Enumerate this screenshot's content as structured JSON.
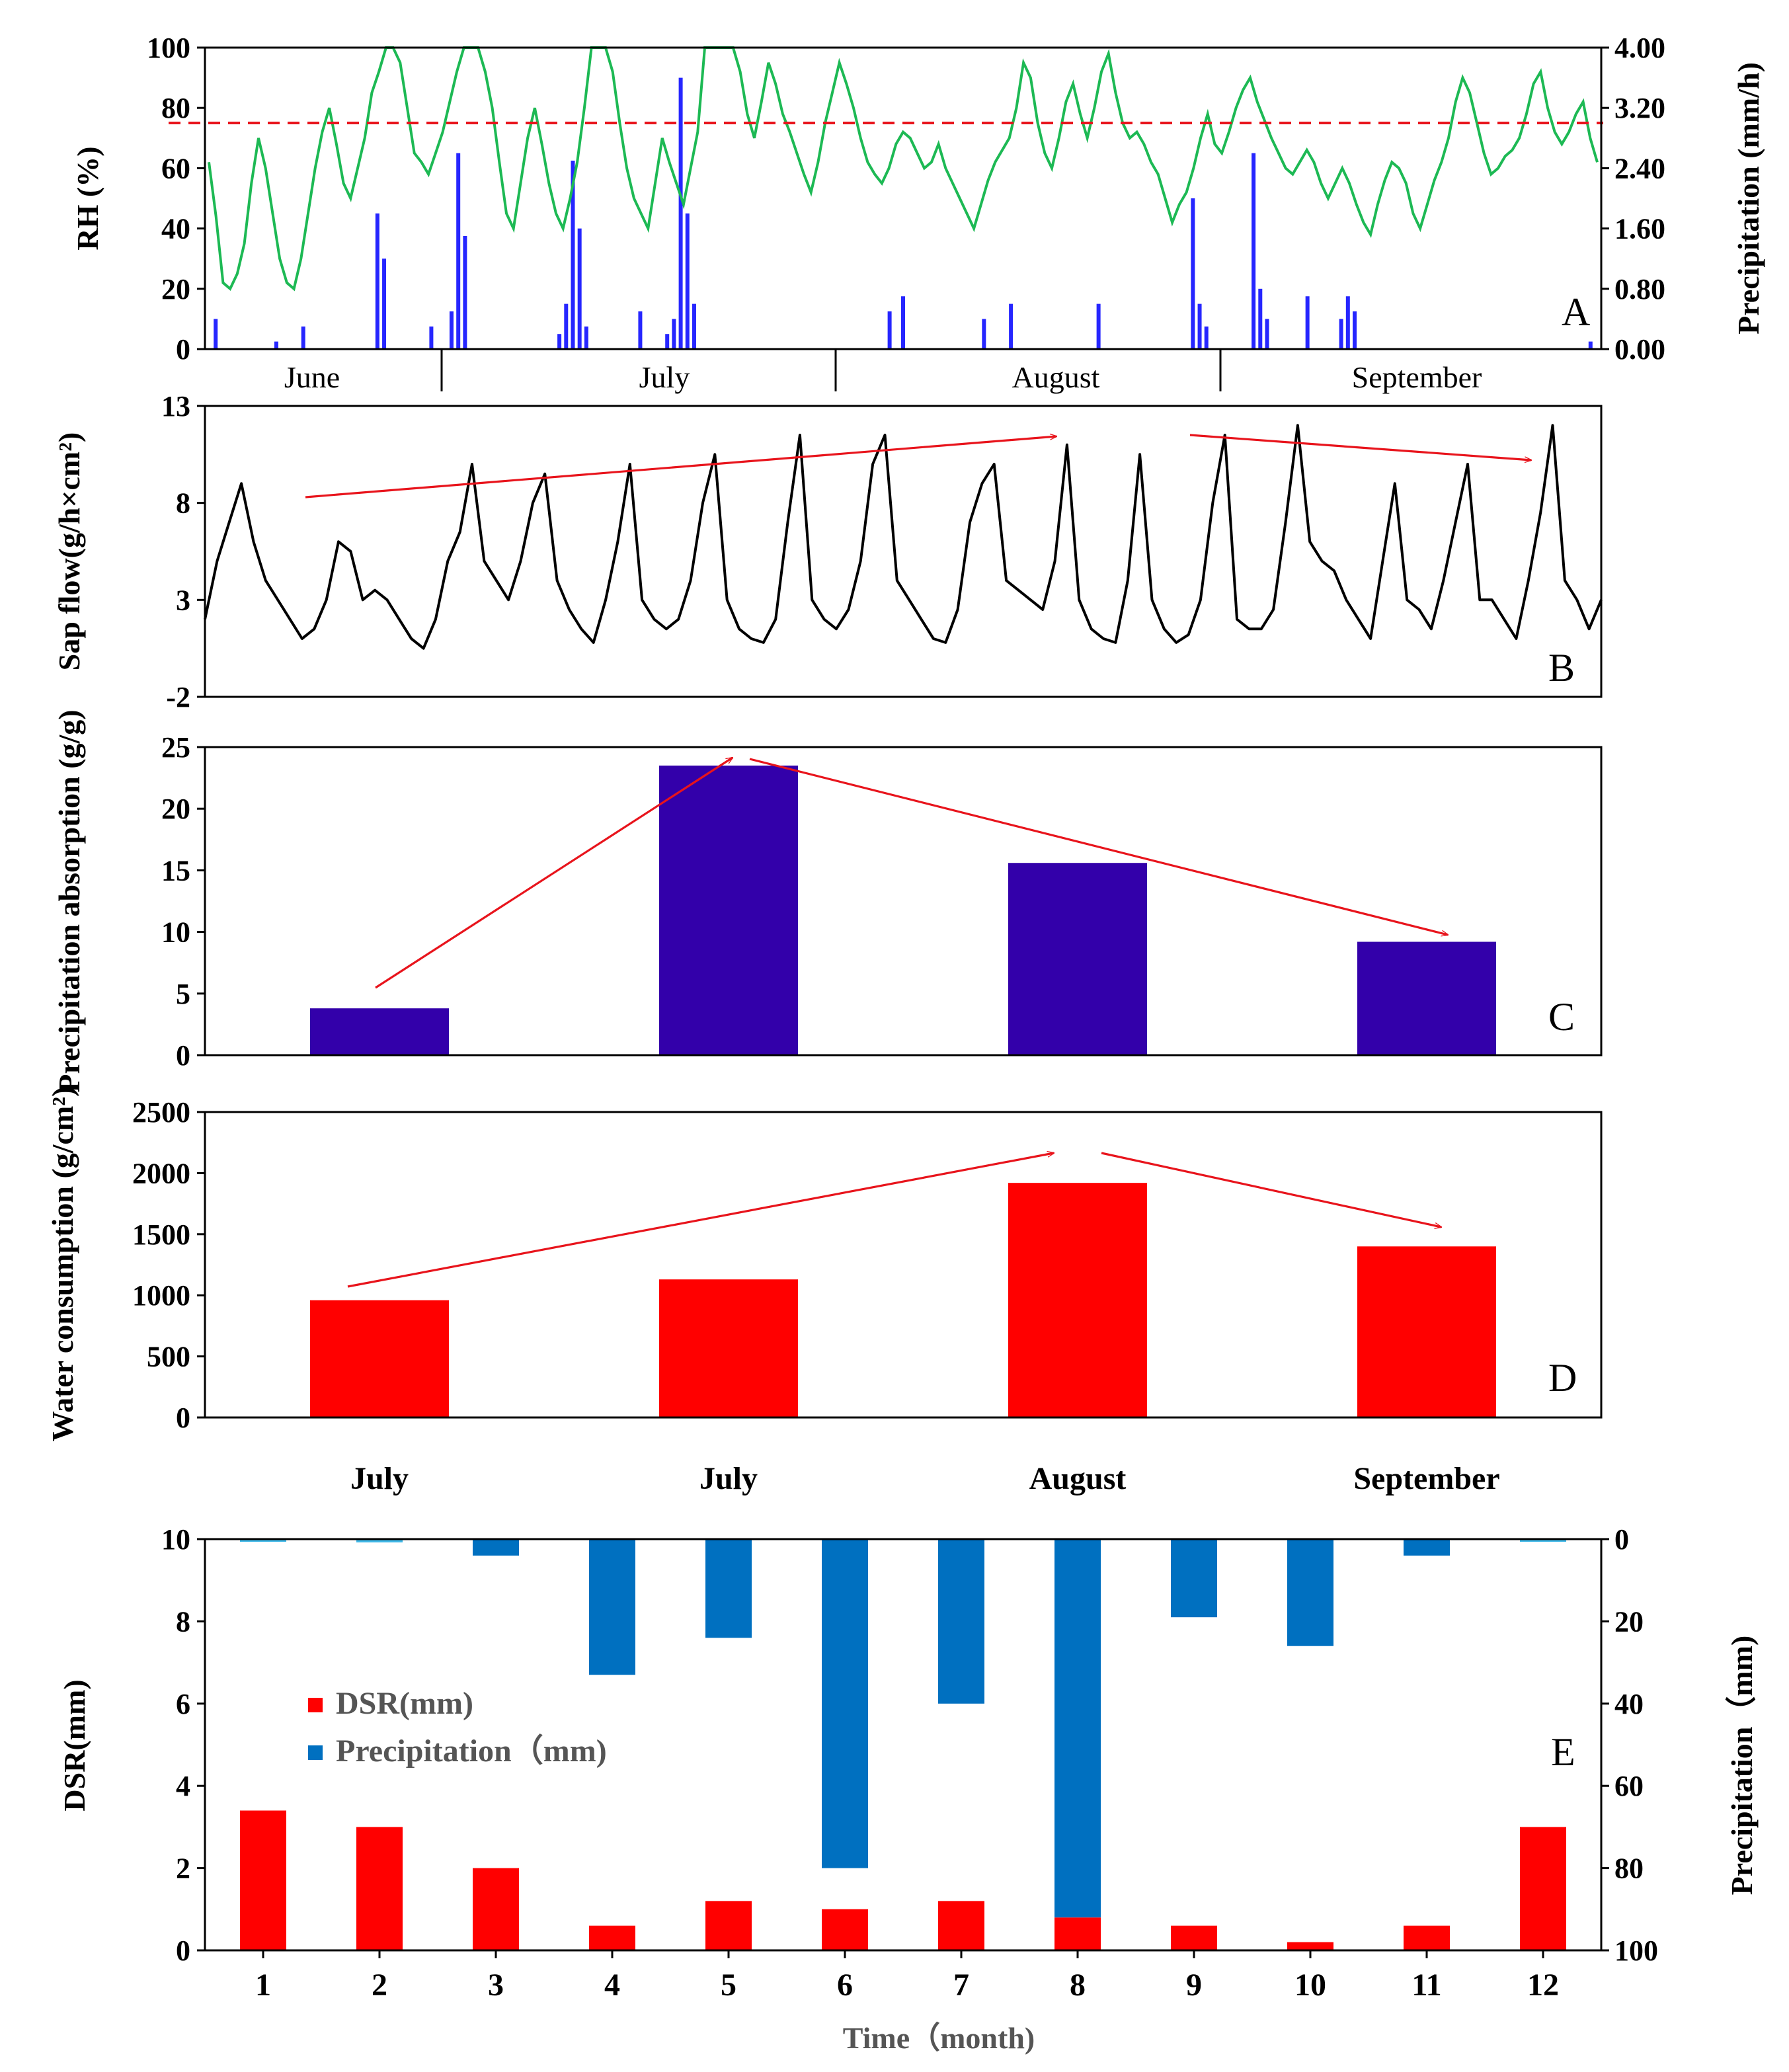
{
  "chart_data": [
    {
      "panel": "A",
      "type": "line",
      "ylabel": "RH (%)",
      "y2label": "Precipitation (mm/h)",
      "yticks": [
        "0",
        "20",
        "40",
        "60",
        "80",
        "100"
      ],
      "y2ticks": [
        "0.00",
        "0.80",
        "1.60",
        "2.40",
        "3.20",
        "4.00"
      ],
      "ylim": [
        0,
        100
      ],
      "y2lim": [
        0,
        4
      ],
      "months": [
        "June",
        "July",
        "August",
        "September"
      ],
      "threshold": 75,
      "series": [
        {
          "values": [
            62,
            44,
            22,
            20,
            25,
            35,
            55,
            70,
            60,
            45,
            30,
            22,
            20,
            30,
            45,
            60,
            72,
            80,
            68,
            55,
            50,
            60,
            70,
            85,
            92,
            100,
            100,
            95,
            80,
            65,
            62,
            58,
            65,
            72,
            82,
            92,
            100,
            100,
            100,
            92,
            80,
            62,
            45,
            40,
            55,
            70,
            80,
            68,
            55,
            45,
            40,
            50,
            62,
            80,
            100,
            100,
            100,
            92,
            75,
            60,
            50,
            45,
            40,
            55,
            70,
            62,
            55,
            48,
            60,
            72,
            100,
            100,
            100,
            100,
            100,
            92,
            78,
            70,
            82,
            95,
            88,
            78,
            72,
            65,
            58,
            52,
            62,
            75,
            85,
            95,
            88,
            80,
            70,
            62,
            58,
            55,
            60,
            68,
            72,
            70,
            65,
            60,
            62,
            68,
            60,
            55,
            50,
            45,
            40,
            48,
            56,
            62,
            66,
            70,
            80,
            95,
            90,
            75,
            65,
            60,
            70,
            82,
            88,
            78,
            70,
            80,
            92,
            98,
            85,
            75,
            70,
            72,
            68,
            62,
            58,
            50,
            42,
            48,
            52,
            60,
            70,
            78,
            68,
            65,
            72,
            80,
            86,
            90,
            82,
            76,
            70,
            65,
            60,
            58,
            62,
            66,
            62,
            55,
            50,
            55,
            60,
            55,
            48,
            42,
            38,
            48,
            56,
            62,
            60,
            55,
            45,
            40,
            48,
            56,
            62,
            70,
            82,
            90,
            85,
            75,
            65,
            58,
            60,
            64,
            66,
            70,
            78,
            88,
            92,
            80,
            72,
            68,
            72,
            78,
            82,
            70,
            62
          ]
        },
        {
          "values": [
            0,
            0.4,
            0,
            0,
            0,
            0,
            0,
            0,
            0,
            0,
            0.1,
            0,
            0,
            0,
            0.3,
            0,
            0,
            0,
            0,
            0,
            0,
            0,
            0,
            0,
            0,
            1.8,
            1.2,
            0,
            0,
            0,
            0,
            0,
            0,
            0.3,
            0,
            0,
            0.5,
            2.6,
            1.5,
            0,
            0,
            0,
            0,
            0,
            0,
            0,
            0,
            0,
            0,
            0,
            0,
            0,
            0.2,
            0.6,
            2.5,
            1.6,
            0.3,
            0,
            0,
            0,
            0,
            0,
            0,
            0,
            0.5,
            0,
            0,
            0,
            0.2,
            0.4,
            3.6,
            1.8,
            0.6,
            0,
            0,
            0,
            0,
            0,
            0,
            0,
            0,
            0,
            0,
            0,
            0,
            0,
            0,
            0,
            0,
            0,
            0,
            0,
            0,
            0,
            0,
            0,
            0,
            0,
            0,
            0,
            0,
            0.5,
            0,
            0.7,
            0,
            0,
            0,
            0,
            0,
            0,
            0,
            0,
            0,
            0,
            0,
            0.4,
            0,
            0,
            0,
            0.6,
            0,
            0,
            0,
            0,
            0,
            0,
            0,
            0,
            0,
            0,
            0,
            0,
            0.6,
            0,
            0,
            0,
            0,
            0,
            0,
            0,
            0,
            0,
            0,
            0,
            0,
            0,
            2.0,
            0.6,
            0.3,
            0,
            0,
            0,
            0,
            0,
            0,
            2.6,
            0.8,
            0.4,
            0,
            0,
            0,
            0,
            0,
            0.7,
            0,
            0,
            0,
            0,
            0.4,
            0.7,
            0.5,
            0,
            0,
            0,
            0,
            0,
            0,
            0,
            0,
            0,
            0,
            0,
            0,
            0,
            0,
            0,
            0,
            0,
            0,
            0,
            0,
            0,
            0,
            0,
            0,
            0,
            0,
            0,
            0,
            0,
            0,
            0,
            0,
            0,
            0,
            0.1,
            0
          ]
        }
      ]
    },
    {
      "panel": "B",
      "type": "line",
      "ylabel": "Sap flow(g/h×cm²)",
      "yticks": [
        "-2",
        "3",
        "8",
        "13"
      ],
      "ylim": [
        -2,
        13
      ],
      "series": [
        {
          "values": [
            2,
            5,
            7,
            9,
            6,
            4,
            3,
            2,
            1,
            1.5,
            3,
            6,
            5.5,
            3,
            3.5,
            3,
            2,
            1,
            0.5,
            2,
            5,
            6.5,
            10,
            5,
            4,
            3,
            5,
            8,
            9.5,
            4,
            2.5,
            1.5,
            0.8,
            3,
            6,
            10,
            3,
            2,
            1.5,
            2,
            4,
            8,
            10.5,
            3,
            1.5,
            1,
            0.8,
            2,
            7,
            11.5,
            3,
            2,
            1.5,
            2.5,
            5,
            10,
            11.5,
            4,
            3,
            2,
            1,
            0.8,
            2.5,
            7,
            9,
            10,
            4,
            3.5,
            3,
            2.5,
            5,
            11,
            3,
            1.5,
            1,
            0.8,
            4,
            10.5,
            3,
            1.5,
            0.8,
            1.2,
            3,
            8,
            11.5,
            2,
            1.5,
            1.5,
            2.5,
            7,
            12,
            6,
            5,
            4.5,
            3,
            2,
            1,
            5,
            9,
            3,
            2.5,
            1.5,
            4,
            7,
            10,
            3,
            3,
            2,
            1,
            4,
            7.5,
            12,
            4,
            3,
            1.5,
            3
          ]
        }
      ]
    },
    {
      "panel": "C",
      "type": "bar",
      "ylabel": "Precipitation absorption (g/g)",
      "yticks": [
        "0",
        "5",
        "10",
        "15",
        "20",
        "25"
      ],
      "ylim": [
        0,
        25
      ],
      "values": [
        3.8,
        23.5,
        15.6,
        9.2
      ]
    },
    {
      "panel": "D",
      "type": "bar",
      "ylabel": "Water consumption (g/cm²)",
      "yticks": [
        "0",
        "500",
        "1000",
        "1500",
        "2000",
        "2500"
      ],
      "ylim": [
        0,
        2500
      ],
      "values": [
        960,
        1130,
        1920,
        1400
      ],
      "categories": [
        "July",
        "July",
        "August",
        "September"
      ]
    },
    {
      "panel": "E",
      "type": "bar",
      "xlabel": "Time（month)",
      "ylabel": "DSR(mm)",
      "y2label": "Precipitation（mm)",
      "yticks": [
        "0",
        "2",
        "4",
        "6",
        "8",
        "10"
      ],
      "y2ticks": [
        "100",
        "80",
        "60",
        "40",
        "20",
        "0"
      ],
      "ylim": [
        0,
        10
      ],
      "y2lim": [
        0,
        100
      ],
      "categories": [
        "1",
        "2",
        "3",
        "4",
        "5",
        "6",
        "7",
        "8",
        "9",
        "10",
        "11",
        "12"
      ],
      "series": [
        {
          "name": "DSR(mm)",
          "values": [
            3.4,
            3.0,
            2.0,
            0.6,
            1.2,
            1.0,
            1.2,
            0.8,
            0.6,
            0.2,
            0.6,
            3.0
          ]
        },
        {
          "name": "Precipitation（mm)",
          "values": [
            0,
            0.8,
            4,
            33,
            24,
            80,
            40,
            92,
            19,
            26,
            4,
            0.5
          ]
        }
      ],
      "legend": "upper-left"
    }
  ],
  "colors": {
    "rh_line": "#1db954",
    "precip_hourly": "#0000ff",
    "threshold": "#e8141c",
    "sap_line": "#000000",
    "absorption_bar": "#3300aa",
    "consumption_bar": "#ff0000",
    "dsr_bar": "#ff0000",
    "precip_monthly_bar": "#0070c0",
    "trend_arrow": "#e8141c"
  }
}
